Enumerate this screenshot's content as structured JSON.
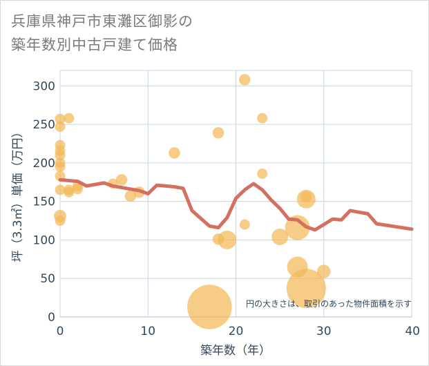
{
  "title_line1": "兵庫県神戸市東灘区御影の",
  "title_line2": "築年数別中古戸建て価格",
  "chart_data": {
    "type": "scatter",
    "title": "兵庫県神戸市東灘区御影の築年数別中古戸建て価格",
    "xlabel": "築年数（年）",
    "ylabel": "坪（3.3㎡）単価（万円）",
    "xlim": [
      0,
      40
    ],
    "ylim": [
      0,
      320
    ],
    "xticks": [
      0,
      10,
      20,
      30,
      40
    ],
    "yticks": [
      0,
      50,
      100,
      150,
      200,
      250,
      300
    ],
    "grid": true,
    "note": "円の大きさは、取引のあった物件面積を示す",
    "bubble_color": "#f2b858",
    "line_color": "#d4705f",
    "points": [
      {
        "x": 0,
        "y": 257,
        "s": 1
      },
      {
        "x": 0,
        "y": 247,
        "s": 1
      },
      {
        "x": 0,
        "y": 223,
        "s": 1
      },
      {
        "x": 0,
        "y": 216,
        "s": 1
      },
      {
        "x": 0,
        "y": 210,
        "s": 1
      },
      {
        "x": 0,
        "y": 200,
        "s": 1
      },
      {
        "x": 0,
        "y": 195,
        "s": 1
      },
      {
        "x": 0,
        "y": 183,
        "s": 1
      },
      {
        "x": 0,
        "y": 165,
        "s": 1
      },
      {
        "x": 0,
        "y": 131,
        "s": 1.2
      },
      {
        "x": 0,
        "y": 125,
        "s": 1
      },
      {
        "x": 1,
        "y": 258,
        "s": 1
      },
      {
        "x": 1,
        "y": 165,
        "s": 1
      },
      {
        "x": 1,
        "y": 162,
        "s": 1
      },
      {
        "x": 2,
        "y": 170,
        "s": 1
      },
      {
        "x": 2,
        "y": 166,
        "s": 1
      },
      {
        "x": 6,
        "y": 173,
        "s": 1
      },
      {
        "x": 7,
        "y": 178,
        "s": 1.1
      },
      {
        "x": 8,
        "y": 157,
        "s": 1.1
      },
      {
        "x": 9,
        "y": 162,
        "s": 1.1
      },
      {
        "x": 13,
        "y": 213,
        "s": 1.1
      },
      {
        "x": 17,
        "y": 13,
        "s": 4.3
      },
      {
        "x": 18,
        "y": 239,
        "s": 1.1
      },
      {
        "x": 18,
        "y": 101,
        "s": 1.1
      },
      {
        "x": 19,
        "y": 100,
        "s": 1.8
      },
      {
        "x": 21,
        "y": 308,
        "s": 1.1
      },
      {
        "x": 21,
        "y": 120,
        "s": 1.0
      },
      {
        "x": 23,
        "y": 258,
        "s": 1.0
      },
      {
        "x": 23,
        "y": 186,
        "s": 1.0
      },
      {
        "x": 25,
        "y": 104,
        "s": 1.6
      },
      {
        "x": 27,
        "y": 116,
        "s": 2.4
      },
      {
        "x": 27,
        "y": 65,
        "s": 2.0
      },
      {
        "x": 28,
        "y": 156,
        "s": 1.1
      },
      {
        "x": 28,
        "y": 153,
        "s": 1.8
      },
      {
        "x": 28,
        "y": 37,
        "s": 3.8
      },
      {
        "x": 30,
        "y": 59,
        "s": 1.3
      }
    ],
    "trend": {
      "x": [
        0,
        1,
        2,
        3,
        4,
        5,
        6,
        7,
        8,
        9,
        10,
        11,
        12,
        13,
        14,
        15,
        16,
        17,
        18,
        19,
        20,
        21,
        22,
        23,
        24,
        25,
        26,
        27,
        28,
        29,
        30,
        31,
        32,
        33,
        34,
        35,
        36,
        40
      ],
      "y": [
        178,
        177,
        176,
        170,
        172,
        174,
        170,
        168,
        166,
        164,
        160,
        171,
        170,
        169,
        167,
        138,
        128,
        118,
        116,
        129,
        154,
        165,
        173,
        165,
        152,
        141,
        127,
        126,
        117,
        113,
        120,
        127,
        126,
        138,
        136,
        134,
        121,
        114
      ]
    }
  }
}
